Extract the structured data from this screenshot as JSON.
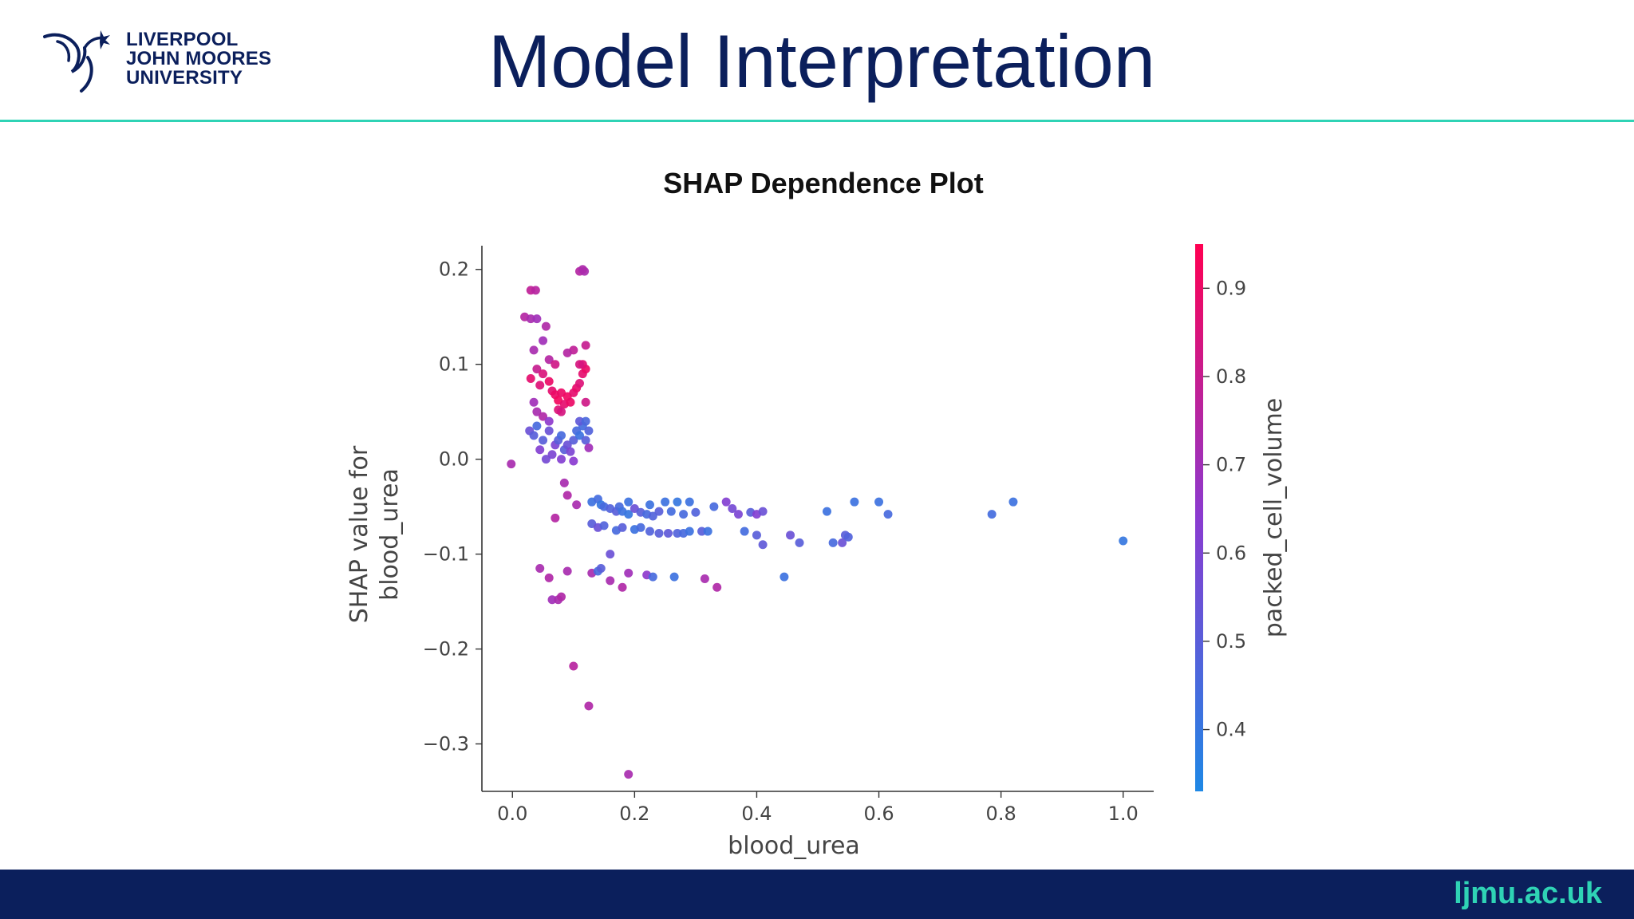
{
  "logo": {
    "line1": "LIVERPOOL",
    "line2": "JOHN MOORES",
    "line3": "UNIVERSITY",
    "icon": "liver-bird-icon"
  },
  "slide_title": "Model Interpretation",
  "footer": {
    "url": "ljmu.ac.uk"
  },
  "colors": {
    "navy": "#0b1f5c",
    "teal": "#2fd3b5",
    "low": "#1e88e5",
    "high": "#ff0052"
  },
  "chart_data": {
    "type": "scatter",
    "title": "SHAP Dependence Plot",
    "xlabel": "blood_urea",
    "ylabel_lines": [
      "SHAP value for",
      "blood_urea"
    ],
    "xlim": [
      -0.05,
      1.05
    ],
    "ylim": [
      -0.35,
      0.225
    ],
    "xticks": [
      0.0,
      0.2,
      0.4,
      0.6,
      0.8,
      1.0
    ],
    "xtick_labels": [
      "0.0",
      "0.2",
      "0.4",
      "0.6",
      "0.8",
      "1.0"
    ],
    "yticks": [
      0.2,
      0.1,
      0.0,
      -0.1,
      -0.2,
      -0.3
    ],
    "ytick_labels": [
      "0.2",
      "0.1",
      "0.0",
      "−0.1",
      "−0.2",
      "−0.3"
    ],
    "colorbar": {
      "label": "packed_cell_volume",
      "range": [
        0.33,
        0.95
      ],
      "ticks": [
        0.9,
        0.8,
        0.7,
        0.6,
        0.5,
        0.4
      ],
      "tick_labels": [
        "0.9",
        "0.8",
        "0.7",
        "0.6",
        "0.5",
        "0.4"
      ]
    },
    "points": [
      {
        "x": -0.002,
        "y": -0.005,
        "c": 0.72
      },
      {
        "x": 0.02,
        "y": 0.15,
        "c": 0.75
      },
      {
        "x": 0.03,
        "y": 0.148,
        "c": 0.72
      },
      {
        "x": 0.04,
        "y": 0.148,
        "c": 0.7
      },
      {
        "x": 0.03,
        "y": 0.178,
        "c": 0.78
      },
      {
        "x": 0.038,
        "y": 0.178,
        "c": 0.76
      },
      {
        "x": 0.05,
        "y": 0.125,
        "c": 0.7
      },
      {
        "x": 0.055,
        "y": 0.14,
        "c": 0.74
      },
      {
        "x": 0.035,
        "y": 0.115,
        "c": 0.72
      },
      {
        "x": 0.06,
        "y": 0.105,
        "c": 0.75
      },
      {
        "x": 0.04,
        "y": 0.095,
        "c": 0.8
      },
      {
        "x": 0.05,
        "y": 0.09,
        "c": 0.85
      },
      {
        "x": 0.03,
        "y": 0.085,
        "c": 0.88
      },
      {
        "x": 0.045,
        "y": 0.078,
        "c": 0.86
      },
      {
        "x": 0.06,
        "y": 0.082,
        "c": 0.9
      },
      {
        "x": 0.065,
        "y": 0.072,
        "c": 0.88
      },
      {
        "x": 0.07,
        "y": 0.068,
        "c": 0.9
      },
      {
        "x": 0.075,
        "y": 0.062,
        "c": 0.92
      },
      {
        "x": 0.08,
        "y": 0.07,
        "c": 0.9
      },
      {
        "x": 0.085,
        "y": 0.058,
        "c": 0.88
      },
      {
        "x": 0.09,
        "y": 0.066,
        "c": 0.91
      },
      {
        "x": 0.095,
        "y": 0.06,
        "c": 0.9
      },
      {
        "x": 0.1,
        "y": 0.07,
        "c": 0.88
      },
      {
        "x": 0.075,
        "y": 0.052,
        "c": 0.86
      },
      {
        "x": 0.08,
        "y": 0.05,
        "c": 0.84
      },
      {
        "x": 0.105,
        "y": 0.075,
        "c": 0.89
      },
      {
        "x": 0.11,
        "y": 0.08,
        "c": 0.86
      },
      {
        "x": 0.115,
        "y": 0.09,
        "c": 0.88
      },
      {
        "x": 0.12,
        "y": 0.095,
        "c": 0.9
      },
      {
        "x": 0.115,
        "y": 0.1,
        "c": 0.87
      },
      {
        "x": 0.11,
        "y": 0.1,
        "c": 0.84
      },
      {
        "x": 0.12,
        "y": 0.06,
        "c": 0.82
      },
      {
        "x": 0.1,
        "y": 0.115,
        "c": 0.78
      },
      {
        "x": 0.09,
        "y": 0.112,
        "c": 0.75
      },
      {
        "x": 0.12,
        "y": 0.12,
        "c": 0.8
      },
      {
        "x": 0.07,
        "y": 0.1,
        "c": 0.82
      },
      {
        "x": 0.035,
        "y": 0.06,
        "c": 0.7
      },
      {
        "x": 0.04,
        "y": 0.05,
        "c": 0.72
      },
      {
        "x": 0.05,
        "y": 0.045,
        "c": 0.74
      },
      {
        "x": 0.06,
        "y": 0.04,
        "c": 0.65
      },
      {
        "x": 0.028,
        "y": 0.03,
        "c": 0.55
      },
      {
        "x": 0.035,
        "y": 0.025,
        "c": 0.5
      },
      {
        "x": 0.04,
        "y": 0.035,
        "c": 0.45
      },
      {
        "x": 0.05,
        "y": 0.02,
        "c": 0.5
      },
      {
        "x": 0.06,
        "y": 0.03,
        "c": 0.55
      },
      {
        "x": 0.07,
        "y": 0.015,
        "c": 0.6
      },
      {
        "x": 0.075,
        "y": 0.02,
        "c": 0.5
      },
      {
        "x": 0.08,
        "y": 0.025,
        "c": 0.45
      },
      {
        "x": 0.085,
        "y": 0.01,
        "c": 0.5
      },
      {
        "x": 0.09,
        "y": 0.015,
        "c": 0.55
      },
      {
        "x": 0.095,
        "y": 0.008,
        "c": 0.6
      },
      {
        "x": 0.1,
        "y": 0.02,
        "c": 0.5
      },
      {
        "x": 0.105,
        "y": 0.03,
        "c": 0.45
      },
      {
        "x": 0.11,
        "y": 0.025,
        "c": 0.42
      },
      {
        "x": 0.115,
        "y": 0.035,
        "c": 0.44
      },
      {
        "x": 0.12,
        "y": 0.02,
        "c": 0.5
      },
      {
        "x": 0.125,
        "y": 0.03,
        "c": 0.48
      },
      {
        "x": 0.11,
        "y": 0.04,
        "c": 0.52
      },
      {
        "x": 0.12,
        "y": 0.04,
        "c": 0.46
      },
      {
        "x": 0.045,
        "y": 0.01,
        "c": 0.62
      },
      {
        "x": 0.065,
        "y": 0.005,
        "c": 0.6
      },
      {
        "x": 0.08,
        "y": 0.0,
        "c": 0.62
      },
      {
        "x": 0.1,
        "y": -0.002,
        "c": 0.64
      },
      {
        "x": 0.055,
        "y": 0.0,
        "c": 0.58
      },
      {
        "x": 0.125,
        "y": 0.012,
        "c": 0.7
      },
      {
        "x": 0.085,
        "y": -0.025,
        "c": 0.72
      },
      {
        "x": 0.09,
        "y": -0.038,
        "c": 0.74
      },
      {
        "x": 0.105,
        "y": -0.048,
        "c": 0.72
      },
      {
        "x": 0.07,
        "y": -0.062,
        "c": 0.75
      },
      {
        "x": 0.11,
        "y": 0.198,
        "c": 0.75
      },
      {
        "x": 0.118,
        "y": 0.198,
        "c": 0.72
      },
      {
        "x": 0.115,
        "y": 0.2,
        "c": 0.73
      },
      {
        "x": 0.045,
        "y": -0.115,
        "c": 0.72
      },
      {
        "x": 0.06,
        "y": -0.125,
        "c": 0.74
      },
      {
        "x": 0.09,
        "y": -0.118,
        "c": 0.72
      },
      {
        "x": 0.065,
        "y": -0.148,
        "c": 0.7
      },
      {
        "x": 0.075,
        "y": -0.148,
        "c": 0.72
      },
      {
        "x": 0.08,
        "y": -0.145,
        "c": 0.74
      },
      {
        "x": 0.1,
        "y": -0.218,
        "c": 0.76
      },
      {
        "x": 0.125,
        "y": -0.26,
        "c": 0.74
      },
      {
        "x": 0.19,
        "y": -0.332,
        "c": 0.72
      },
      {
        "x": 0.13,
        "y": -0.12,
        "c": 0.72
      },
      {
        "x": 0.14,
        "y": -0.118,
        "c": 0.45
      },
      {
        "x": 0.145,
        "y": -0.115,
        "c": 0.5
      },
      {
        "x": 0.16,
        "y": -0.1,
        "c": 0.55
      },
      {
        "x": 0.16,
        "y": -0.128,
        "c": 0.72
      },
      {
        "x": 0.18,
        "y": -0.135,
        "c": 0.74
      },
      {
        "x": 0.19,
        "y": -0.12,
        "c": 0.7
      },
      {
        "x": 0.22,
        "y": -0.122,
        "c": 0.65
      },
      {
        "x": 0.23,
        "y": -0.124,
        "c": 0.45
      },
      {
        "x": 0.265,
        "y": -0.124,
        "c": 0.42
      },
      {
        "x": 0.315,
        "y": -0.126,
        "c": 0.72
      },
      {
        "x": 0.335,
        "y": -0.135,
        "c": 0.74
      },
      {
        "x": 0.445,
        "y": -0.124,
        "c": 0.42
      },
      {
        "x": 0.13,
        "y": -0.045,
        "c": 0.42
      },
      {
        "x": 0.14,
        "y": -0.042,
        "c": 0.44
      },
      {
        "x": 0.145,
        "y": -0.048,
        "c": 0.4
      },
      {
        "x": 0.15,
        "y": -0.05,
        "c": 0.45
      },
      {
        "x": 0.16,
        "y": -0.052,
        "c": 0.48
      },
      {
        "x": 0.17,
        "y": -0.055,
        "c": 0.5
      },
      {
        "x": 0.175,
        "y": -0.05,
        "c": 0.45
      },
      {
        "x": 0.18,
        "y": -0.055,
        "c": 0.42
      },
      {
        "x": 0.19,
        "y": -0.058,
        "c": 0.4
      },
      {
        "x": 0.19,
        "y": -0.045,
        "c": 0.42
      },
      {
        "x": 0.2,
        "y": -0.052,
        "c": 0.55
      },
      {
        "x": 0.21,
        "y": -0.056,
        "c": 0.5
      },
      {
        "x": 0.22,
        "y": -0.058,
        "c": 0.45
      },
      {
        "x": 0.225,
        "y": -0.048,
        "c": 0.42
      },
      {
        "x": 0.23,
        "y": -0.06,
        "c": 0.48
      },
      {
        "x": 0.24,
        "y": -0.055,
        "c": 0.5
      },
      {
        "x": 0.25,
        "y": -0.045,
        "c": 0.42
      },
      {
        "x": 0.26,
        "y": -0.055,
        "c": 0.44
      },
      {
        "x": 0.27,
        "y": -0.045,
        "c": 0.4
      },
      {
        "x": 0.28,
        "y": -0.058,
        "c": 0.45
      },
      {
        "x": 0.29,
        "y": -0.045,
        "c": 0.42
      },
      {
        "x": 0.3,
        "y": -0.056,
        "c": 0.48
      },
      {
        "x": 0.33,
        "y": -0.05,
        "c": 0.45
      },
      {
        "x": 0.35,
        "y": -0.045,
        "c": 0.62
      },
      {
        "x": 0.36,
        "y": -0.052,
        "c": 0.58
      },
      {
        "x": 0.37,
        "y": -0.058,
        "c": 0.6
      },
      {
        "x": 0.39,
        "y": -0.056,
        "c": 0.5
      },
      {
        "x": 0.4,
        "y": -0.058,
        "c": 0.62
      },
      {
        "x": 0.41,
        "y": -0.055,
        "c": 0.55
      },
      {
        "x": 0.13,
        "y": -0.068,
        "c": 0.5
      },
      {
        "x": 0.14,
        "y": -0.072,
        "c": 0.55
      },
      {
        "x": 0.15,
        "y": -0.07,
        "c": 0.48
      },
      {
        "x": 0.17,
        "y": -0.075,
        "c": 0.45
      },
      {
        "x": 0.18,
        "y": -0.072,
        "c": 0.5
      },
      {
        "x": 0.2,
        "y": -0.074,
        "c": 0.42
      },
      {
        "x": 0.21,
        "y": -0.072,
        "c": 0.45
      },
      {
        "x": 0.225,
        "y": -0.076,
        "c": 0.48
      },
      {
        "x": 0.24,
        "y": -0.078,
        "c": 0.5
      },
      {
        "x": 0.255,
        "y": -0.078,
        "c": 0.52
      },
      {
        "x": 0.27,
        "y": -0.078,
        "c": 0.48
      },
      {
        "x": 0.28,
        "y": -0.078,
        "c": 0.45
      },
      {
        "x": 0.29,
        "y": -0.076,
        "c": 0.42
      },
      {
        "x": 0.31,
        "y": -0.076,
        "c": 0.5
      },
      {
        "x": 0.32,
        "y": -0.076,
        "c": 0.42
      },
      {
        "x": 0.38,
        "y": -0.076,
        "c": 0.44
      },
      {
        "x": 0.4,
        "y": -0.08,
        "c": 0.5
      },
      {
        "x": 0.41,
        "y": -0.09,
        "c": 0.52
      },
      {
        "x": 0.455,
        "y": -0.08,
        "c": 0.55
      },
      {
        "x": 0.47,
        "y": -0.088,
        "c": 0.5
      },
      {
        "x": 0.515,
        "y": -0.055,
        "c": 0.42
      },
      {
        "x": 0.525,
        "y": -0.088,
        "c": 0.45
      },
      {
        "x": 0.54,
        "y": -0.088,
        "c": 0.55
      },
      {
        "x": 0.545,
        "y": -0.08,
        "c": 0.5
      },
      {
        "x": 0.55,
        "y": -0.082,
        "c": 0.48
      },
      {
        "x": 0.56,
        "y": -0.045,
        "c": 0.42
      },
      {
        "x": 0.6,
        "y": -0.045,
        "c": 0.42
      },
      {
        "x": 0.615,
        "y": -0.058,
        "c": 0.45
      },
      {
        "x": 0.785,
        "y": -0.058,
        "c": 0.44
      },
      {
        "x": 0.82,
        "y": -0.045,
        "c": 0.42
      },
      {
        "x": 1.0,
        "y": -0.086,
        "c": 0.4
      }
    ]
  }
}
